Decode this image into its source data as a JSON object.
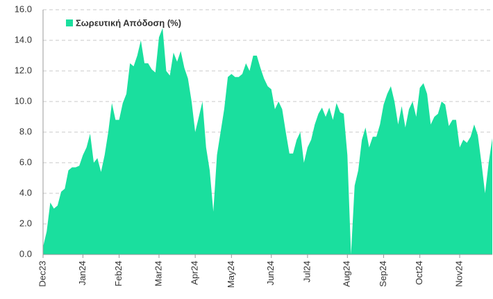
{
  "chart_data": {
    "type": "area",
    "categories": [
      "Dec23",
      null,
      null,
      null,
      null,
      null,
      null,
      null,
      null,
      null,
      null,
      "Jan24",
      null,
      null,
      null,
      null,
      null,
      null,
      null,
      null,
      null,
      "Feb24",
      null,
      null,
      null,
      null,
      null,
      null,
      null,
      null,
      null,
      null,
      "Mar24",
      null,
      null,
      null,
      null,
      null,
      null,
      null,
      null,
      null,
      "Apr24",
      null,
      null,
      null,
      null,
      null,
      null,
      null,
      null,
      null,
      "May24",
      null,
      null,
      null,
      null,
      null,
      null,
      null,
      null,
      null,
      null,
      "Jun24",
      null,
      null,
      null,
      null,
      null,
      null,
      null,
      null,
      null,
      "Jul24",
      null,
      null,
      null,
      null,
      null,
      null,
      null,
      null,
      null,
      null,
      "Aug24",
      null,
      null,
      null,
      null,
      null,
      null,
      null,
      null,
      null,
      "Sep24",
      null,
      null,
      null,
      null,
      null,
      null,
      null,
      null,
      null,
      "Oct24",
      null,
      null,
      null,
      null,
      null,
      null,
      null,
      null,
      null,
      null,
      "Nov24",
      null,
      null,
      null,
      null,
      null,
      null,
      null,
      null,
      null
    ],
    "series": [
      {
        "name": "Σωρευτική Απόδοση (%)",
        "color": "#1adf9e",
        "values": [
          0.5,
          1.5,
          3.4,
          3.0,
          3.2,
          4.1,
          4.3,
          5.5,
          5.7,
          5.7,
          5.8,
          6.5,
          7.0,
          7.9,
          6.0,
          6.3,
          5.4,
          6.5,
          8.0,
          9.9,
          8.8,
          8.8,
          9.9,
          10.5,
          12.5,
          12.3,
          13.0,
          14.0,
          12.5,
          12.5,
          12.1,
          11.9,
          14.2,
          14.8,
          12.0,
          11.7,
          13.2,
          12.6,
          13.3,
          12.2,
          11.5,
          10.0,
          8.0,
          9.0,
          10.0,
          7.0,
          5.5,
          2.8,
          6.5,
          8.0,
          9.5,
          11.6,
          11.8,
          11.6,
          11.6,
          11.8,
          12.5,
          12.0,
          13.0,
          13.0,
          12.2,
          11.5,
          11.0,
          10.8,
          9.5,
          10.0,
          9.5,
          8.0,
          6.6,
          6.6,
          7.5,
          8.0,
          6.0,
          7.0,
          7.5,
          8.5,
          9.2,
          9.6,
          9.0,
          9.6,
          8.8,
          9.9,
          9.3,
          9.2,
          6.5,
          0.0,
          4.5,
          5.5,
          7.5,
          8.3,
          7.0,
          7.7,
          7.7,
          8.5,
          9.8,
          10.5,
          11.0,
          10.0,
          8.5,
          9.7,
          8.3,
          9.5,
          10.0,
          9.0,
          10.9,
          11.2,
          10.5,
          8.5,
          9.0,
          9.2,
          10.0,
          9.8,
          8.4,
          8.8,
          8.8,
          7.0,
          7.5,
          7.3,
          7.7,
          8.5,
          7.8,
          6.0,
          4.0,
          6.0,
          7.6
        ]
      }
    ],
    "ylim": [
      0,
      16
    ],
    "yticks": [
      {
        "value": 0,
        "label": "0.0"
      },
      {
        "value": 2,
        "label": "2.0"
      },
      {
        "value": 4,
        "label": "4.0"
      },
      {
        "value": 6,
        "label": "6.0"
      },
      {
        "value": 8,
        "label": "8.0"
      },
      {
        "value": 10,
        "label": "10.0"
      },
      {
        "value": 12,
        "label": "12.0"
      },
      {
        "value": 14,
        "label": "14.0"
      },
      {
        "value": 16,
        "label": "16.0"
      }
    ],
    "grid": true,
    "legend": "top-left"
  }
}
